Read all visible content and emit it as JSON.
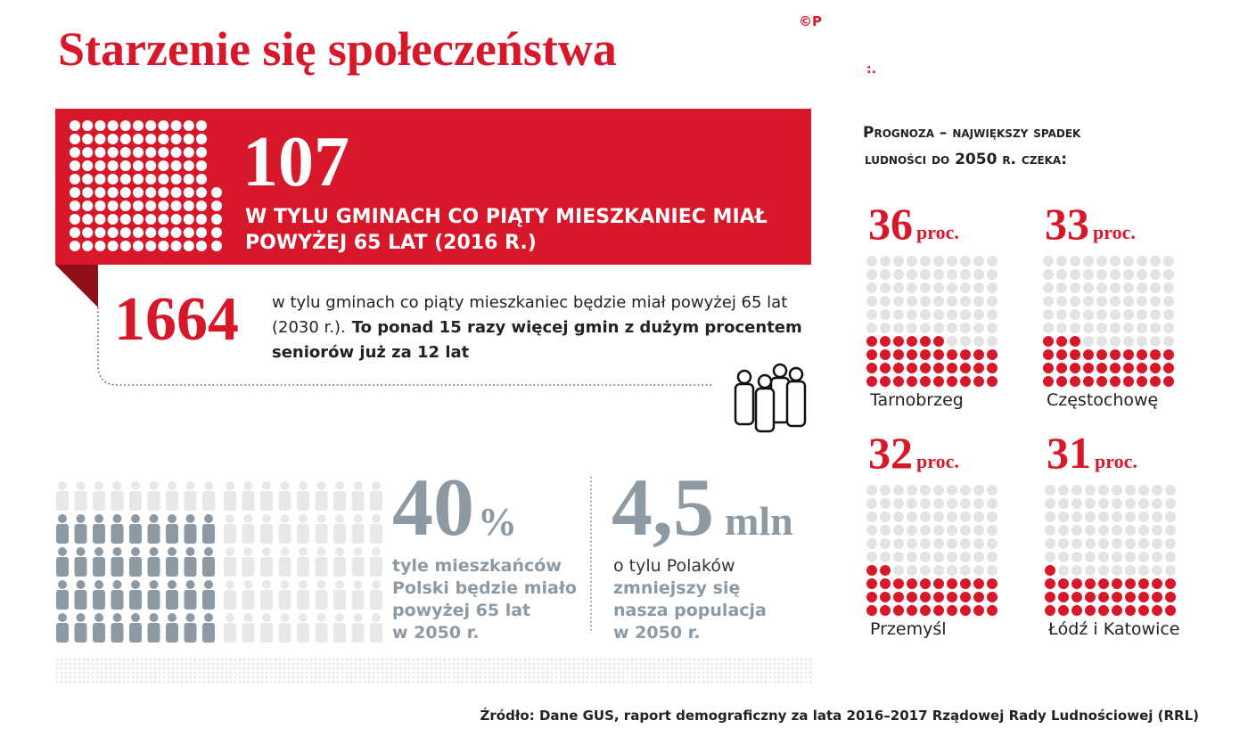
{
  "header": {
    "title": "Starzenie się społeczeństwa",
    "logo": "©P"
  },
  "highlight": {
    "value": 107,
    "lines": [
      "W TYLU GMINACH CO PIĄTY MIESZKANIEC MIAŁ",
      "POWYŻEJ 65 LAT (2016 R.)"
    ]
  },
  "forecast_2030": {
    "value": 1664,
    "text": [
      "w tylu gminach co piąty mieszkaniec będzie miał powyżej 65 lat",
      "(2030 r.).",
      "To ponad 15 razy więcej gmin z dużym procentem",
      "seniorów już za 12 lat"
    ]
  },
  "seniors": {
    "value": 40,
    "unit": "%",
    "lines": [
      "tyle mieszkańców",
      "Polski będzie miało",
      "powyżej 65 lat",
      "w 2050 r."
    ]
  },
  "population": {
    "value": "4,5",
    "unit": "mln",
    "lines": [
      "o tylu Polaków",
      "zmniejszy się",
      "nasza populacja",
      "w 2050 r."
    ]
  },
  "regions": {
    "heading": [
      "Prognoza – największy spadek",
      "ludności do 2050 r. czeka:"
    ],
    "unit": "proc.",
    "items": [
      {
        "value": 36,
        "name": "Tarnobrzeg"
      },
      {
        "value": 33,
        "name": "Częstochowę"
      },
      {
        "value": 32,
        "name": "Przemyśl"
      },
      {
        "value": 31,
        "name": "Łódź i Katowice"
      }
    ]
  },
  "source": "Źródło: Dane GUS, raport demograficzny za lata 2016–2017 Rządowej Rady Ludnościowej (RRL)"
}
